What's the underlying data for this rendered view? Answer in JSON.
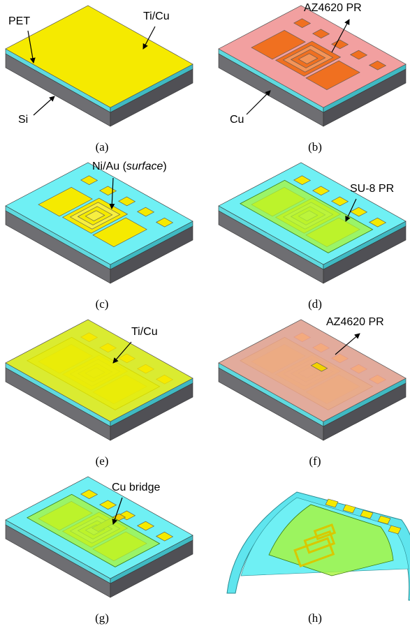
{
  "panels": [
    {
      "label": "(a)",
      "annotations": [
        "PET",
        "Ti/Cu",
        "Si"
      ]
    },
    {
      "label": "(b)",
      "annotations": [
        "AZ4620 PR",
        "Cu"
      ]
    },
    {
      "label": "(c)",
      "annotations": [
        [
          "Ni/Au (",
          "surface",
          ")"
        ]
      ]
    },
    {
      "label": "(d)",
      "annotations": [
        "SU-8 PR"
      ]
    },
    {
      "label": "(e)",
      "annotations": [
        "Ti/Cu"
      ]
    },
    {
      "label": "(f)",
      "annotations": [
        "AZ4620 PR"
      ]
    },
    {
      "label": "(g)",
      "annotations": [
        "Cu bridge"
      ]
    },
    {
      "label": "(h)",
      "annotations": []
    }
  ]
}
